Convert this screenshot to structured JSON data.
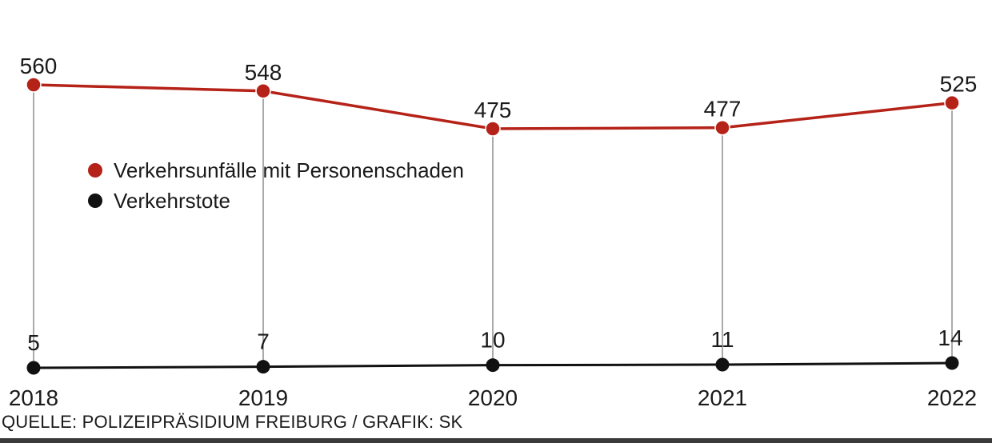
{
  "chart_data": {
    "type": "line",
    "categories": [
      "2018",
      "2019",
      "2020",
      "2021",
      "2022"
    ],
    "series": [
      {
        "name": "Verkehrsunfälle mit Personenschaden",
        "values": [
          560,
          548,
          475,
          477,
          525
        ],
        "color": "#b52218"
      },
      {
        "name": "Verkehrstote",
        "values": [
          5,
          7,
          10,
          11,
          14
        ],
        "color": "#111111"
      }
    ],
    "legend_position": "left",
    "grid": "vertical drop lines"
  },
  "source_text": "QUELLE: POLIZEIPRÄSIDIUM FREIBURG / GRAFIK: SK"
}
